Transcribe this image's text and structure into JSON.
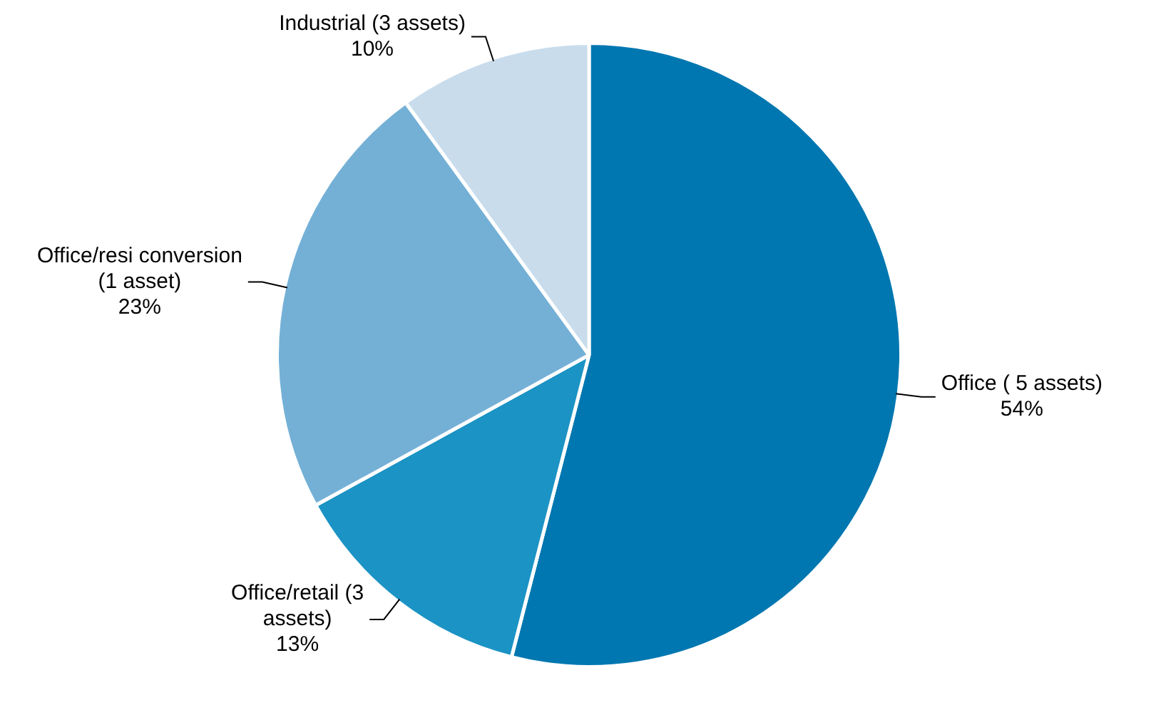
{
  "chart_data": {
    "type": "pie",
    "categories": [
      "Office ( 5 assets)",
      "Office/retail (3 assets)",
      "Office/resi conversion (1 asset)",
      "Industrial (3 assets)"
    ],
    "values": [
      54,
      13,
      23,
      10
    ],
    "value_labels": [
      "54%",
      "13%",
      "23%",
      "10%"
    ],
    "colors": [
      "#0077b0",
      "#1b93c4",
      "#74b0d6",
      "#c8dcec"
    ],
    "legend": false
  }
}
